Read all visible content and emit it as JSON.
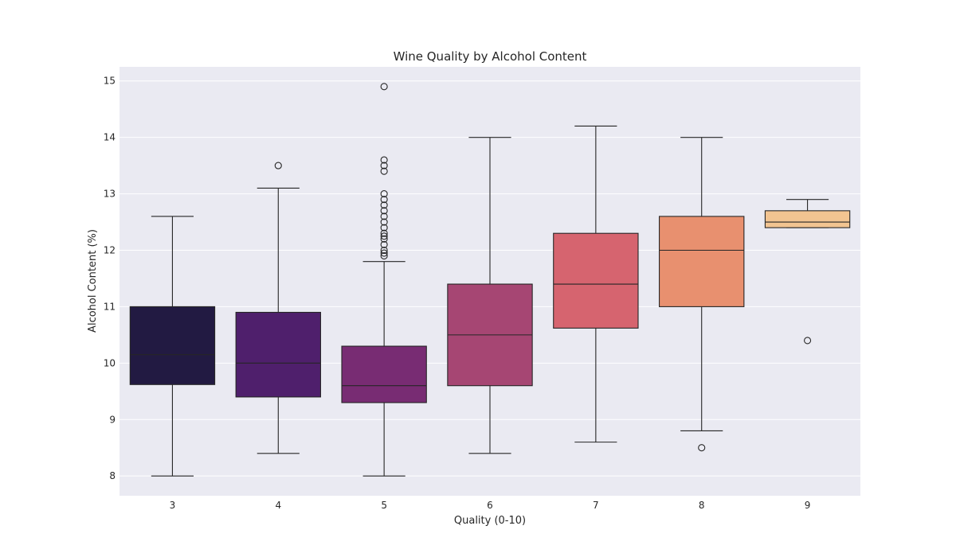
{
  "chart_data": {
    "type": "box",
    "title": "Wine Quality by Alcohol Content",
    "xlabel": "Quality (0-10)",
    "ylabel": "Alcohol Content (%)",
    "ylim": [
      7.65,
      15.25
    ],
    "yticks": [
      8,
      9,
      10,
      11,
      12,
      13,
      14,
      15
    ],
    "grid": true,
    "categories": [
      "3",
      "4",
      "5",
      "6",
      "7",
      "8",
      "9"
    ],
    "colors": [
      "#221a42",
      "#4f1f6c",
      "#782c73",
      "#a64673",
      "#d6646f",
      "#e8906f",
      "#f2c491"
    ],
    "boxes": [
      {
        "category": "3",
        "whisker_low": 8.0,
        "q1": 9.62,
        "median": 10.15,
        "q3": 11.0,
        "whisker_high": 12.6,
        "outliers": []
      },
      {
        "category": "4",
        "whisker_low": 8.4,
        "q1": 9.4,
        "median": 10.0,
        "q3": 10.9,
        "whisker_high": 13.1,
        "outliers": [
          13.5
        ]
      },
      {
        "category": "5",
        "whisker_low": 8.0,
        "q1": 9.3,
        "median": 9.6,
        "q3": 10.3,
        "whisker_high": 11.8,
        "outliers": [
          11.9,
          11.95,
          12.0,
          12.1,
          12.2,
          12.25,
          12.3,
          12.4,
          12.5,
          12.6,
          12.7,
          12.8,
          12.9,
          13.0,
          13.4,
          13.5,
          13.6,
          14.9
        ]
      },
      {
        "category": "6",
        "whisker_low": 8.4,
        "q1": 9.6,
        "median": 10.5,
        "q3": 11.4,
        "whisker_high": 14.0,
        "outliers": []
      },
      {
        "category": "7",
        "whisker_low": 8.6,
        "q1": 10.62,
        "median": 11.4,
        "q3": 12.3,
        "whisker_high": 14.2,
        "outliers": []
      },
      {
        "category": "8",
        "whisker_low": 8.8,
        "q1": 11.0,
        "median": 12.0,
        "q3": 12.6,
        "whisker_high": 14.0,
        "outliers": [
          8.5
        ]
      },
      {
        "category": "9",
        "whisker_low": 12.4,
        "q1": 12.4,
        "median": 12.5,
        "q3": 12.7,
        "whisker_high": 12.9,
        "outliers": [
          10.4
        ]
      }
    ]
  }
}
